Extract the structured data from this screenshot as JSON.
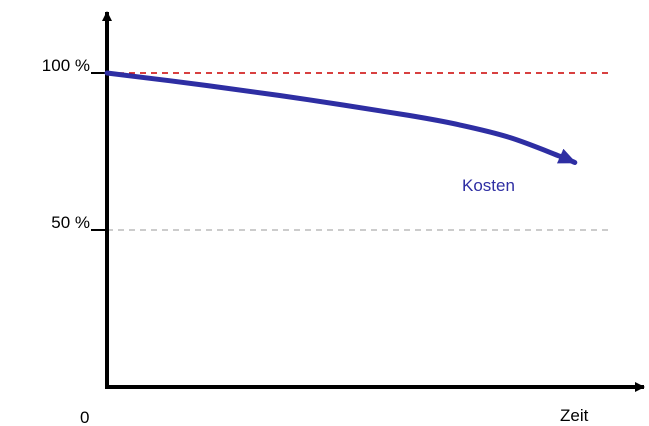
{
  "chart_data": {
    "type": "line",
    "xlabel": "Zeit",
    "ylabel": "",
    "origin_label": "0",
    "xlim": [
      0,
      100
    ],
    "ylim": [
      0,
      120
    ],
    "reference_lines": [
      {
        "label": "100 %",
        "value": 100,
        "color": "#cc0000",
        "style": "dashed"
      },
      {
        "label": "50 %",
        "value": 50,
        "color": "#bbbbbb",
        "style": "dashed"
      }
    ],
    "series": [
      {
        "name": "Kosten",
        "color": "#2e2ea3",
        "arrow": true,
        "x": [
          0,
          20,
          40,
          60,
          70,
          80,
          90,
          93
        ],
        "y": [
          100,
          96,
          91.5,
          86.5,
          83.5,
          79.5,
          73.5,
          71.5
        ]
      }
    ]
  }
}
